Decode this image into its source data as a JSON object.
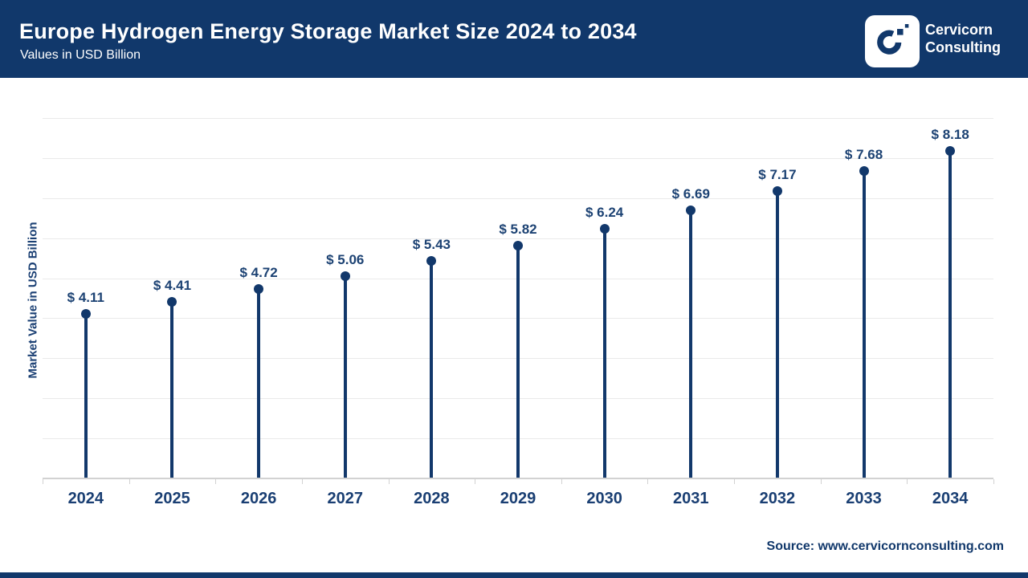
{
  "header": {
    "title": "Europe Hydrogen Energy Storage Market Size 2024 to 2034",
    "subtitle": "Values in USD Billion",
    "logo": {
      "line1": "Cervicorn",
      "line2": "Consulting"
    }
  },
  "chart_data": {
    "type": "bar",
    "variant": "lollipop",
    "title": "Europe Hydrogen Energy Storage Market Size 2024 to 2034",
    "categories": [
      "2024",
      "2025",
      "2026",
      "2027",
      "2028",
      "2029",
      "2030",
      "2031",
      "2032",
      "2033",
      "2034"
    ],
    "values": [
      4.11,
      4.41,
      4.72,
      5.06,
      5.43,
      5.82,
      6.24,
      6.69,
      7.17,
      7.68,
      8.18
    ],
    "value_label_prefix": "$ ",
    "xlabel": "",
    "ylabel": "Market Value in USD Billion",
    "ylim": [
      0,
      10
    ],
    "grid": true,
    "grid_interval": 1,
    "legend_position": "none"
  },
  "footer": {
    "source": "Source: www.cervicornconsulting.com"
  },
  "colors": {
    "navy": "#11386b",
    "data": "#12386b",
    "value_text": "#1c4273",
    "axis_text": "#1a3f73",
    "gridline": "#eaeaea",
    "axis_line": "#d2d2d2"
  }
}
